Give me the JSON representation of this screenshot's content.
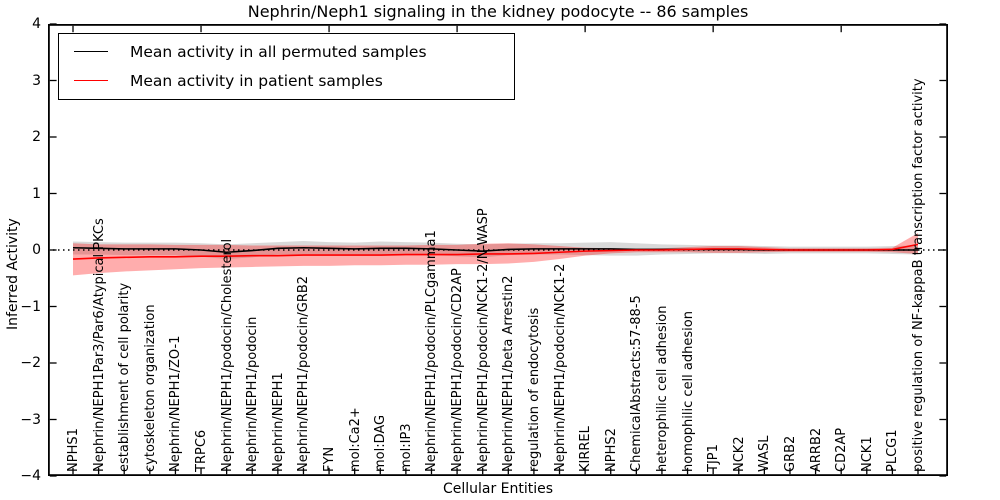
{
  "figure": {
    "title": "Nephrin/Neph1 signaling in the kidney podocyte -- 86 samples"
  },
  "legend": {
    "items": [
      {
        "label": "Mean activity in all permuted samples",
        "color": "#000000"
      },
      {
        "label": "Mean activity in patient samples",
        "color": "#ff0000"
      }
    ]
  },
  "axes": {
    "xlabel": "Cellular Entities",
    "ylabel": "Inferred Activity",
    "ytick_labels": [
      "4",
      "3",
      "2",
      "1",
      "0",
      "−1",
      "−2",
      "−3",
      "−4"
    ]
  },
  "chart_data": {
    "type": "line",
    "title": "Nephrin/Neph1 signaling in the kidney podocyte -- 86 samples",
    "xlabel": "Cellular Entities",
    "ylabel": "Inferred Activity",
    "ylim": [
      -4,
      4
    ],
    "yticks": [
      4,
      3,
      2,
      1,
      0,
      -1,
      -2,
      -3,
      -4
    ],
    "legend_position": "upper left",
    "grid": false,
    "zero_line": {
      "y": 0,
      "style": "dotted",
      "color": "#000000"
    },
    "categories": [
      "NPHS1",
      "Nephrin/NEPH1Par3/Par6/Atypical PKCs",
      "establishment of cell polarity",
      "cytoskeleton organization",
      "Nephrin/NEPH1/ZO-1",
      "TRPC6",
      "Nephrin/NEPH1/podocin/Cholesterol",
      "Nephrin/NEPH1/podocin",
      "Nephrin/NEPH1",
      "Nephrin/NEPH1/podocin/GRB2",
      "FYN",
      "mol:Ca2+",
      "mol:DAG",
      "mol:IP3",
      "Nephrin/NEPH1/podocin/PLCgamma1",
      "Nephrin/NEPH1/podocin/CD2AP",
      "Nephrin/NEPH1/podocin/NCK1-2/N-WASP",
      "Nephrin/NEPH1/beta Arrestin2",
      "regulation of endocytosis",
      "Nephrin/NEPH1/podocin/NCK1-2",
      "KIRREL",
      "NPHS2",
      "ChemicalAbstracts:57-88-5",
      "heterophilic cell adhesion",
      "homophilic cell adhesion",
      "TJP1",
      "NCK2",
      "WASL",
      "GRB2",
      "ARRB2",
      "CD2AP",
      "NCK1",
      "PLCG1",
      "positive regulation of NF-kappaB transcription factor activity"
    ],
    "series": [
      {
        "name": "Mean activity in all permuted samples",
        "color": "#000000",
        "band_fill": "rgba(0,0,0,0.15)",
        "values": [
          0.04,
          0.03,
          0.02,
          0.02,
          0.02,
          0.0,
          -0.04,
          -0.01,
          0.03,
          0.04,
          0.03,
          0.02,
          0.03,
          0.03,
          0.02,
          0.0,
          -0.02,
          0.01,
          0.02,
          0.02,
          0.02,
          0.02,
          0.01,
          0.01,
          0.01,
          0.01,
          0.01,
          0.0,
          0.0,
          0.0,
          0.0,
          0.0,
          0.0,
          0.0
        ],
        "band_upper": [
          0.15,
          0.14,
          0.13,
          0.13,
          0.13,
          0.12,
          0.1,
          0.12,
          0.14,
          0.16,
          0.14,
          0.13,
          0.15,
          0.14,
          0.13,
          0.11,
          0.1,
          0.11,
          0.12,
          0.12,
          0.13,
          0.14,
          0.12,
          0.1,
          0.09,
          0.08,
          0.08,
          0.07,
          0.06,
          0.06,
          0.06,
          0.06,
          0.07,
          0.08
        ],
        "band_lower": [
          -0.08,
          -0.08,
          -0.09,
          -0.09,
          -0.09,
          -0.12,
          -0.16,
          -0.13,
          -0.08,
          -0.08,
          -0.08,
          -0.09,
          -0.09,
          -0.08,
          -0.09,
          -0.11,
          -0.13,
          -0.09,
          -0.08,
          -0.08,
          -0.09,
          -0.1,
          -0.1,
          -0.08,
          -0.07,
          -0.06,
          -0.06,
          -0.07,
          -0.06,
          -0.06,
          -0.06,
          -0.06,
          -0.07,
          -0.08
        ]
      },
      {
        "name": "Mean activity in patient samples",
        "color": "#ff0000",
        "band_fill": "rgba(255,0,0,0.32)",
        "values": [
          -0.16,
          -0.14,
          -0.13,
          -0.12,
          -0.12,
          -0.11,
          -0.11,
          -0.1,
          -0.1,
          -0.09,
          -0.09,
          -0.09,
          -0.09,
          -0.08,
          -0.08,
          -0.08,
          -0.07,
          -0.07,
          -0.06,
          -0.04,
          -0.02,
          -0.01,
          0.0,
          0.0,
          0.01,
          0.02,
          0.02,
          0.01,
          0.0,
          0.0,
          0.0,
          0.0,
          0.01,
          0.1
        ],
        "band_upper": [
          0.12,
          0.1,
          0.1,
          0.1,
          0.09,
          0.09,
          0.09,
          0.08,
          0.08,
          0.08,
          0.08,
          0.08,
          0.08,
          0.08,
          0.09,
          0.09,
          0.11,
          0.12,
          0.1,
          0.07,
          0.04,
          0.03,
          0.02,
          0.03,
          0.05,
          0.07,
          0.07,
          0.05,
          0.03,
          0.03,
          0.03,
          0.03,
          0.04,
          0.3
        ],
        "band_lower": [
          -0.45,
          -0.41,
          -0.38,
          -0.36,
          -0.34,
          -0.32,
          -0.31,
          -0.3,
          -0.29,
          -0.28,
          -0.28,
          -0.27,
          -0.27,
          -0.26,
          -0.26,
          -0.25,
          -0.25,
          -0.24,
          -0.21,
          -0.16,
          -0.1,
          -0.06,
          -0.04,
          -0.04,
          -0.04,
          -0.05,
          -0.05,
          -0.04,
          -0.03,
          -0.03,
          -0.03,
          -0.03,
          -0.04,
          -0.07
        ]
      }
    ]
  }
}
